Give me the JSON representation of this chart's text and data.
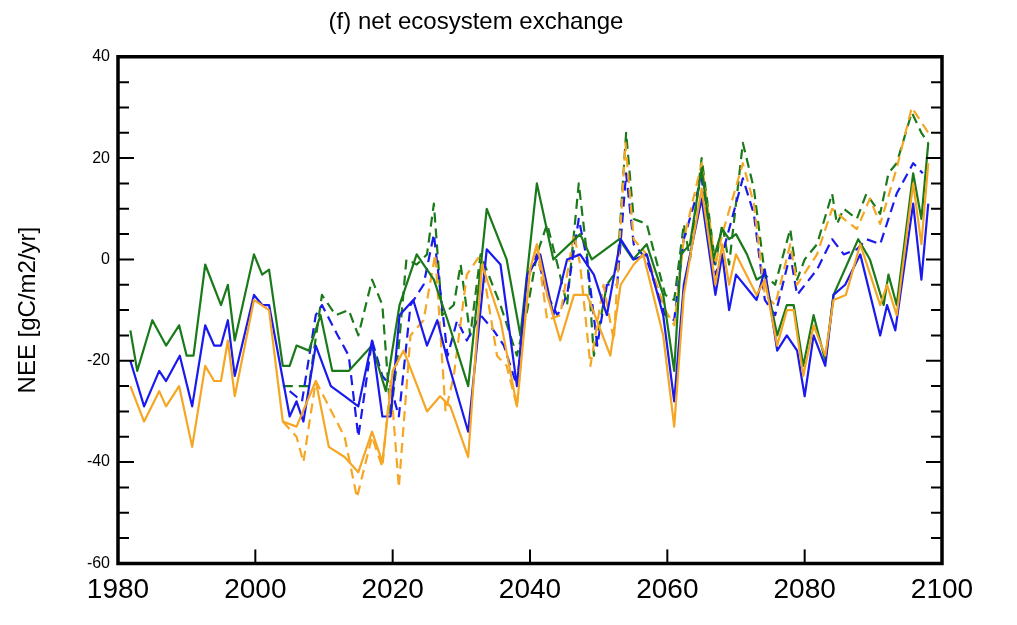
{
  "chart_data": {
    "type": "line",
    "title": "(f) net ecosystem exchange",
    "ylabel": "NEE [gC/m2/yr]",
    "xlim": [
      1980,
      2100
    ],
    "xticks": [
      1980,
      2000,
      2020,
      2040,
      2060,
      2080,
      2100
    ],
    "ylim": [
      -60,
      40
    ],
    "yticks": [
      -60,
      {
        "value": -55,
        "label": null
      },
      {
        "value": -50,
        "label": null
      },
      {
        "value": -45,
        "label": null
      },
      -40,
      {
        "value": -35,
        "label": null
      },
      {
        "value": -30,
        "label": null
      },
      {
        "value": -25,
        "label": null
      },
      -20,
      {
        "value": -15,
        "label": null
      },
      {
        "value": -10,
        "label": null
      },
      {
        "value": -5,
        "label": null
      },
      0,
      {
        "value": 5,
        "label": null
      },
      {
        "value": 10,
        "label": null
      },
      {
        "value": 15,
        "label": null
      },
      20,
      {
        "value": 25,
        "label": null
      },
      {
        "value": 30,
        "label": null
      },
      {
        "value": 35,
        "label": null
      },
      40
    ],
    "grid": false,
    "legend": false,
    "marker": "none",
    "series": [
      {
        "color": "#f5a623",
        "line_style": "solid",
        "x": [
          1981.8,
          1983.8,
          1986,
          1987,
          1988.9,
          1990.8,
          1992.7,
          1994,
          1995,
          1996,
          1997,
          1999.8,
          2002,
          2004,
          2006,
          2008.8,
          2010.7,
          2013,
          2015,
          2017,
          2018.5,
          2020,
          2021.6,
          2025,
          2026.9,
          2028.4,
          2031,
          2033,
          2035.7,
          2038.1,
          2040,
          2041,
          2042.5,
          2044.4,
          2046.4,
          2048.3,
          2051.7,
          2053.2,
          2055.1,
          2056.5,
          2059.4,
          2061,
          2062.4,
          2065,
          2067,
          2068,
          2069,
          2070,
          2073,
          2074.2,
          2076,
          2077.4,
          2078.4,
          2079.8,
          2081.3,
          2083,
          2084.2,
          2086,
          2088.1,
          2091,
          2092,
          2093.4,
          2095.8,
          2097,
          2098
        ],
        "values": [
          -25,
          -32,
          -26,
          -29,
          -25,
          -37,
          -21,
          -24,
          -24,
          -16,
          -27,
          -8,
          -10,
          -32,
          -33,
          -24,
          -37,
          -39,
          -42,
          -34,
          -40,
          -22,
          -18,
          -30,
          -27,
          -29,
          -39,
          -1,
          -12,
          -29,
          -2,
          3,
          -7,
          -16,
          -7,
          -7,
          -19,
          -5,
          -1,
          1,
          -15,
          -33,
          -7,
          14,
          -5,
          3,
          -5,
          1,
          -7,
          -4,
          -17,
          -10,
          -10,
          -23,
          -13,
          -19,
          -8,
          -7,
          3,
          -9,
          -5,
          -11,
          15,
          3,
          19
        ]
      },
      {
        "color": "#1a1aee",
        "line_style": "solid",
        "x": [
          1981.8,
          1983.8,
          1986,
          1987,
          1989,
          1990.8,
          1992.7,
          1994,
          1995,
          1996,
          1997,
          1999.8,
          2001,
          2002,
          2005,
          2006,
          2007,
          2008.8,
          2011,
          2013,
          2015,
          2017,
          2018.5,
          2019.7,
          2021,
          2023,
          2025,
          2026.5,
          2028,
          2031,
          2033.7,
          2035.7,
          2038.1,
          2039.6,
          2041.5,
          2043.4,
          2045.4,
          2047.3,
          2049.3,
          2051.2,
          2053.2,
          2055.1,
          2057,
          2059.4,
          2061,
          2062.4,
          2065,
          2067,
          2068,
          2069,
          2070,
          2073,
          2074.2,
          2076,
          2077.4,
          2078.9,
          2080,
          2081.3,
          2083,
          2084.2,
          2085.9,
          2088.1,
          2091,
          2092,
          2093.2,
          2095.8,
          2097,
          2098
        ],
        "values": [
          -20,
          -29,
          -22,
          -24,
          -19,
          -29,
          -13,
          -17,
          -17,
          -12,
          -23,
          -7,
          -9,
          -9,
          -31,
          -28,
          -32,
          -17,
          -25,
          -27,
          -29,
          -16,
          -31,
          -31,
          -11,
          -8,
          -17,
          -12,
          -20,
          -34,
          2,
          -1,
          -25,
          -3,
          1,
          -11,
          0,
          1,
          -3,
          -11,
          4,
          0,
          1,
          -11,
          -28,
          -5,
          12,
          -7,
          1,
          -10,
          -3,
          -8,
          -2,
          -18,
          -15,
          -18,
          -27,
          -15,
          -21,
          -7,
          -5,
          1,
          -15,
          -9,
          -14,
          11,
          -4,
          11
        ]
      },
      {
        "color": "#1a7a1a",
        "line_style": "solid",
        "x": [
          1981.8,
          1982.8,
          1985,
          1987,
          1988.9,
          1990,
          1991,
          1992.7,
          1995,
          1996,
          1997,
          1999.8,
          2001,
          2002,
          2004,
          2005,
          2006,
          2007.8,
          2009.5,
          2011.2,
          2013.6,
          2017,
          2019,
          2021,
          2023.5,
          2026,
          2028,
          2031,
          2033.7,
          2036.6,
          2038.6,
          2041,
          2043.4,
          2047.3,
          2049,
          2053,
          2055,
          2057,
          2059.4,
          2061,
          2062,
          2063.3,
          2065,
          2066.7,
          2068,
          2069,
          2070,
          2071.6,
          2073,
          2074.2,
          2076,
          2077.4,
          2078.4,
          2079.8,
          2081.3,
          2083,
          2084.2,
          2087.8,
          2089.5,
          2091.5,
          2092.2,
          2093.4,
          2095.8,
          2097,
          2098
        ],
        "values": [
          -14,
          -22,
          -12,
          -17,
          -13,
          -19,
          -19,
          -1,
          -9,
          -5,
          -16,
          1,
          -3,
          -2,
          -21,
          -21,
          -17,
          -18,
          -11,
          -22,
          -22,
          -17,
          -26,
          -9,
          1,
          -4,
          -12,
          -25,
          10,
          0,
          -15,
          15,
          0,
          5,
          0,
          4,
          0,
          3,
          -7,
          -22,
          1,
          3,
          18,
          0,
          6,
          4,
          5,
          1,
          -4,
          -3,
          -15,
          -9,
          -9,
          -21,
          -11,
          -20,
          -7,
          4,
          0,
          -9,
          -3,
          -9,
          17,
          8,
          23
        ]
      },
      {
        "color": "#f5a623",
        "line_style": "dashed",
        "x": [
          2004,
          2006,
          2007,
          2008.8,
          2010.7,
          2013,
          2014.8,
          2017,
          2018.5,
          2019.7,
          2020.9,
          2022.6,
          2024.5,
          2026.2,
          2027.7,
          2028.9,
          2030.8,
          2032.8,
          2035.2,
          2036.6,
          2038.1,
          2039.6,
          2041,
          2042.5,
          2044.4,
          2046.4,
          2047.3,
          2048.8,
          2050.7,
          2052.2,
          2053.9,
          2055.1,
          2057,
          2059.7,
          2061,
          2062.4,
          2065,
          2067,
          2068,
          2071,
          2072.6,
          2074.2,
          2075.7,
          2077.9,
          2078.9,
          2081.8,
          2084,
          2085.7,
          2087.6,
          2089.5,
          2091,
          2093.4,
          2095.6,
          2098
        ],
        "values": [
          -32,
          -35,
          -40,
          -24,
          -29,
          -35,
          -47,
          -35,
          -41,
          -24,
          -45,
          -15,
          -12,
          1,
          -30,
          -23,
          -3,
          1,
          -19,
          -21,
          -29,
          -5,
          3,
          -12,
          -11,
          5,
          -1,
          -21,
          -5,
          -16,
          23,
          4,
          1,
          -10,
          -13,
          4,
          19,
          -1,
          5,
          19,
          11,
          -7,
          -9,
          3,
          -5,
          1,
          10,
          8,
          6,
          12,
          7,
          18,
          30,
          25
        ]
      },
      {
        "color": "#1a1aee",
        "line_style": "dashed",
        "x": [
          2005,
          2006.8,
          2008.8,
          2009.7,
          2012,
          2013.6,
          2015,
          2017,
          2018.5,
          2019.7,
          2020.9,
          2022.6,
          2024.5,
          2026,
          2028,
          2029.4,
          2030.8,
          2032.8,
          2034.7,
          2036.2,
          2038.1,
          2039.6,
          2041,
          2042.5,
          2044,
          2045.4,
          2047.1,
          2048.3,
          2049.8,
          2051.2,
          2052.7,
          2054,
          2055.1,
          2057,
          2059.7,
          2061,
          2062.4,
          2065,
          2067,
          2068,
          2071,
          2072.6,
          2074.2,
          2075.7,
          2077.9,
          2078.9,
          2081.8,
          2084,
          2085.7,
          2087.6,
          2089,
          2091,
          2093.4,
          2095.8,
          2097.2
        ],
        "values": [
          -26,
          -28,
          -11,
          -9,
          -15,
          -19,
          -35,
          -16,
          -23,
          -25,
          -31,
          -9,
          -5,
          5,
          -19,
          -12,
          -16,
          -11,
          -14,
          -17,
          -25,
          -4,
          1,
          -7,
          -11,
          -7,
          8,
          0,
          -17,
          -5,
          -5,
          17,
          3,
          0,
          -11,
          -12,
          4,
          16,
          -3,
          1,
          16,
          9,
          -8,
          -11,
          1,
          -7,
          -2,
          4,
          1,
          2,
          4,
          3,
          13,
          19,
          17
        ]
      },
      {
        "color": "#1a7a1a",
        "line_style": "dashed",
        "x": [
          2004,
          2006,
          2007.8,
          2009.7,
          2011.7,
          2013.6,
          2015,
          2017,
          2018.5,
          2019.7,
          2020.9,
          2022,
          2023.5,
          2025,
          2026,
          2027.2,
          2028.9,
          2029.9,
          2031.3,
          2032.8,
          2035.7,
          2038.1,
          2039.6,
          2041,
          2042.5,
          2044,
          2045.4,
          2047.1,
          2048.3,
          2049.3,
          2051.2,
          2052.7,
          2054,
          2055.1,
          2057,
          2059.7,
          2061,
          2062.4,
          2063.3,
          2065,
          2067,
          2068,
          2069,
          2071,
          2072.6,
          2074.2,
          2075.7,
          2077.9,
          2078.9,
          2080,
          2081.8,
          2084,
          2084.7,
          2085.7,
          2087.6,
          2089,
          2091,
          2092.2,
          2093.4,
          2095.6,
          2097,
          2098
        ],
        "values": [
          -25,
          -25,
          -25,
          -7,
          -11,
          -10,
          -15,
          -4,
          -9,
          -31,
          -17,
          0,
          -1,
          1,
          11,
          -11,
          -9,
          -1,
          -15,
          1,
          -9,
          -19,
          -10,
          1,
          7,
          -1,
          -9,
          15,
          1,
          -19,
          -5,
          -2,
          25,
          8,
          7,
          -7,
          -8,
          7,
          0,
          20,
          -1,
          7,
          -1,
          23,
          14,
          -3,
          -5,
          6,
          -4,
          0,
          3,
          13,
          7,
          10,
          8,
          13,
          9,
          17,
          19,
          29,
          25,
          23
        ]
      }
    ]
  }
}
